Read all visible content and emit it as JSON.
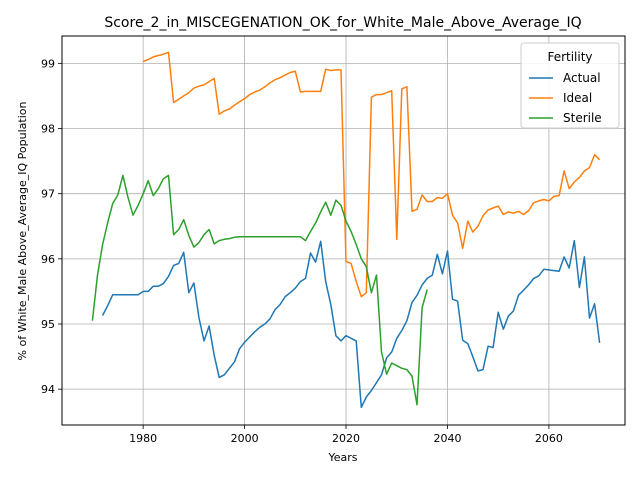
{
  "chart_data": {
    "type": "line",
    "title": "Score_2_in_MISCEGENATION_OK_for_White_Male_Above_Average_IQ",
    "xlabel": "Years",
    "ylabel": "% of White_Male Above_Average_IQ Population",
    "xlim": [
      1964,
      2075
    ],
    "ylim": [
      93.45,
      99.42
    ],
    "x_ticks": [
      1980,
      2000,
      2020,
      2040,
      2060
    ],
    "y_ticks": [
      94,
      95,
      96,
      97,
      98,
      99
    ],
    "grid": true,
    "legend": {
      "title": "Fertility",
      "placement": "top-right"
    },
    "series": [
      {
        "name": "Actual",
        "color": "#1f77b4",
        "points": [
          [
            1972,
            95.13
          ],
          [
            1973,
            95.28
          ],
          [
            1974,
            95.45
          ],
          [
            1976,
            95.45
          ],
          [
            1979,
            95.45
          ],
          [
            1980,
            95.5
          ],
          [
            1981,
            95.5
          ],
          [
            1982,
            95.58
          ],
          [
            1983,
            95.58
          ],
          [
            1984,
            95.62
          ],
          [
            1985,
            95.73
          ],
          [
            1986,
            95.9
          ],
          [
            1987,
            95.93
          ],
          [
            1988,
            96.1
          ],
          [
            1989,
            95.48
          ],
          [
            1990,
            95.63
          ],
          [
            1991,
            95.1
          ],
          [
            1992,
            94.74
          ],
          [
            1993,
            94.97
          ],
          [
            1994,
            94.52
          ],
          [
            1995,
            94.18
          ],
          [
            1996,
            94.22
          ],
          [
            1997,
            94.32
          ],
          [
            1998,
            94.42
          ],
          [
            1999,
            94.62
          ],
          [
            2000,
            94.72
          ],
          [
            2001,
            94.8
          ],
          [
            2002,
            94.88
          ],
          [
            2003,
            94.95
          ],
          [
            2004,
            95.0
          ],
          [
            2005,
            95.08
          ],
          [
            2006,
            95.22
          ],
          [
            2007,
            95.3
          ],
          [
            2008,
            95.42
          ],
          [
            2009,
            95.48
          ],
          [
            2010,
            95.55
          ],
          [
            2011,
            95.65
          ],
          [
            2012,
            95.7
          ],
          [
            2013,
            96.09
          ],
          [
            2014,
            95.95
          ],
          [
            2015,
            96.27
          ],
          [
            2016,
            95.65
          ],
          [
            2017,
            95.3
          ],
          [
            2018,
            94.82
          ],
          [
            2019,
            94.74
          ],
          [
            2020,
            94.82
          ],
          [
            2021,
            94.78
          ],
          [
            2022,
            94.74
          ],
          [
            2023,
            93.72
          ],
          [
            2024,
            93.88
          ],
          [
            2025,
            93.98
          ],
          [
            2026,
            94.1
          ],
          [
            2027,
            94.22
          ],
          [
            2028,
            94.48
          ],
          [
            2029,
            94.57
          ],
          [
            2030,
            94.78
          ],
          [
            2031,
            94.9
          ],
          [
            2032,
            95.05
          ],
          [
            2033,
            95.33
          ],
          [
            2034,
            95.44
          ],
          [
            2035,
            95.6
          ],
          [
            2036,
            95.7
          ],
          [
            2037,
            95.75
          ],
          [
            2038,
            96.07
          ],
          [
            2039,
            95.77
          ],
          [
            2040,
            96.12
          ],
          [
            2041,
            95.38
          ],
          [
            2042,
            95.35
          ],
          [
            2043,
            94.75
          ],
          [
            2044,
            94.7
          ],
          [
            2045,
            94.5
          ],
          [
            2046,
            94.28
          ],
          [
            2047,
            94.3
          ],
          [
            2048,
            94.66
          ],
          [
            2049,
            94.64
          ],
          [
            2050,
            95.18
          ],
          [
            2051,
            94.92
          ],
          [
            2052,
            95.12
          ],
          [
            2053,
            95.2
          ],
          [
            2054,
            95.44
          ],
          [
            2055,
            95.52
          ],
          [
            2056,
            95.6
          ],
          [
            2057,
            95.7
          ],
          [
            2058,
            95.74
          ],
          [
            2059,
            95.84
          ],
          [
            2060,
            95.83
          ],
          [
            2061,
            95.82
          ],
          [
            2062,
            95.81
          ],
          [
            2063,
            96.03
          ],
          [
            2064,
            95.86
          ],
          [
            2065,
            96.28
          ],
          [
            2066,
            95.56
          ],
          [
            2067,
            96.03
          ],
          [
            2068,
            95.09
          ],
          [
            2069,
            95.31
          ],
          [
            2070,
            94.71
          ]
        ]
      },
      {
        "name": "Ideal",
        "color": "#ff7f0e",
        "points": [
          [
            1980,
            99.03
          ],
          [
            1981,
            99.06
          ],
          [
            1982,
            99.1
          ],
          [
            1983,
            99.12
          ],
          [
            1984,
            99.14
          ],
          [
            1985,
            99.17
          ],
          [
            1986,
            98.4
          ],
          [
            1987,
            98.45
          ],
          [
            1988,
            98.5
          ],
          [
            1989,
            98.55
          ],
          [
            1990,
            98.62
          ],
          [
            1991,
            98.65
          ],
          [
            1992,
            98.67
          ],
          [
            1993,
            98.72
          ],
          [
            1994,
            98.77
          ],
          [
            1995,
            98.22
          ],
          [
            1996,
            98.27
          ],
          [
            1997,
            98.3
          ],
          [
            1998,
            98.36
          ],
          [
            1999,
            98.41
          ],
          [
            2000,
            98.46
          ],
          [
            2001,
            98.52
          ],
          [
            2002,
            98.56
          ],
          [
            2003,
            98.59
          ],
          [
            2004,
            98.64
          ],
          [
            2005,
            98.7
          ],
          [
            2006,
            98.75
          ],
          [
            2007,
            98.78
          ],
          [
            2008,
            98.82
          ],
          [
            2009,
            98.86
          ],
          [
            2010,
            98.88
          ],
          [
            2011,
            98.56
          ],
          [
            2012,
            98.57
          ],
          [
            2013,
            98.57
          ],
          [
            2014,
            98.57
          ],
          [
            2015,
            98.57
          ],
          [
            2016,
            98.91
          ],
          [
            2017,
            98.89
          ],
          [
            2018,
            98.9
          ],
          [
            2019,
            98.9
          ],
          [
            2020,
            95.96
          ],
          [
            2021,
            95.93
          ],
          [
            2022,
            95.65
          ],
          [
            2023,
            95.42
          ],
          [
            2024,
            95.48
          ],
          [
            2025,
            98.48
          ],
          [
            2026,
            98.52
          ],
          [
            2027,
            98.52
          ],
          [
            2028,
            98.55
          ],
          [
            2029,
            98.58
          ],
          [
            2030,
            96.3
          ],
          [
            2031,
            98.61
          ],
          [
            2032,
            98.64
          ],
          [
            2033,
            96.73
          ],
          [
            2034,
            96.76
          ],
          [
            2035,
            96.98
          ],
          [
            2036,
            96.88
          ],
          [
            2037,
            96.88
          ],
          [
            2038,
            96.94
          ],
          [
            2039,
            96.93
          ],
          [
            2040,
            97.0
          ],
          [
            2041,
            96.67
          ],
          [
            2042,
            96.55
          ],
          [
            2043,
            96.16
          ],
          [
            2044,
            96.58
          ],
          [
            2045,
            96.41
          ],
          [
            2046,
            96.5
          ],
          [
            2047,
            96.66
          ],
          [
            2048,
            96.75
          ],
          [
            2049,
            96.78
          ],
          [
            2050,
            96.81
          ],
          [
            2051,
            96.68
          ],
          [
            2052,
            96.72
          ],
          [
            2053,
            96.7
          ],
          [
            2054,
            96.73
          ],
          [
            2055,
            96.68
          ],
          [
            2056,
            96.74
          ],
          [
            2057,
            96.86
          ],
          [
            2058,
            96.89
          ],
          [
            2059,
            96.91
          ],
          [
            2060,
            96.89
          ],
          [
            2061,
            96.96
          ],
          [
            2062,
            96.97
          ],
          [
            2063,
            97.35
          ],
          [
            2064,
            97.08
          ],
          [
            2065,
            97.18
          ],
          [
            2066,
            97.25
          ],
          [
            2067,
            97.35
          ],
          [
            2068,
            97.4
          ],
          [
            2069,
            97.6
          ],
          [
            2070,
            97.52
          ]
        ]
      },
      {
        "name": "Sterile",
        "color": "#2ca02c",
        "points": [
          [
            1970,
            95.05
          ],
          [
            1971,
            95.75
          ],
          [
            1972,
            96.22
          ],
          [
            1973,
            96.55
          ],
          [
            1974,
            96.85
          ],
          [
            1975,
            96.98
          ],
          [
            1976,
            97.28
          ],
          [
            1977,
            96.95
          ],
          [
            1978,
            96.67
          ],
          [
            1979,
            96.82
          ],
          [
            1980,
            97.0
          ],
          [
            1981,
            97.2
          ],
          [
            1982,
            96.97
          ],
          [
            1983,
            97.08
          ],
          [
            1984,
            97.23
          ],
          [
            1985,
            97.28
          ],
          [
            1986,
            96.37
          ],
          [
            1987,
            96.45
          ],
          [
            1988,
            96.6
          ],
          [
            1989,
            96.36
          ],
          [
            1990,
            96.18
          ],
          [
            1991,
            96.25
          ],
          [
            1992,
            96.37
          ],
          [
            1993,
            96.45
          ],
          [
            1994,
            96.23
          ],
          [
            1995,
            96.28
          ],
          [
            1996,
            96.3
          ],
          [
            1997,
            96.31
          ],
          [
            1998,
            96.33
          ],
          [
            1999,
            96.34
          ],
          [
            2000,
            96.34
          ],
          [
            2005,
            96.34
          ],
          [
            2010,
            96.34
          ],
          [
            2011,
            96.34
          ],
          [
            2012,
            96.28
          ],
          [
            2013,
            96.42
          ],
          [
            2014,
            96.55
          ],
          [
            2015,
            96.72
          ],
          [
            2016,
            96.87
          ],
          [
            2017,
            96.67
          ],
          [
            2018,
            96.9
          ],
          [
            2019,
            96.82
          ],
          [
            2020,
            96.58
          ],
          [
            2021,
            96.42
          ],
          [
            2022,
            96.22
          ],
          [
            2023,
            96.0
          ],
          [
            2024,
            95.88
          ],
          [
            2025,
            95.48
          ],
          [
            2026,
            95.75
          ],
          [
            2027,
            94.57
          ],
          [
            2028,
            94.23
          ],
          [
            2029,
            94.4
          ],
          [
            2030,
            94.36
          ],
          [
            2031,
            94.32
          ],
          [
            2032,
            94.3
          ],
          [
            2033,
            94.2
          ],
          [
            2034,
            93.76
          ],
          [
            2035,
            95.25
          ],
          [
            2036,
            95.53
          ]
        ]
      }
    ]
  }
}
